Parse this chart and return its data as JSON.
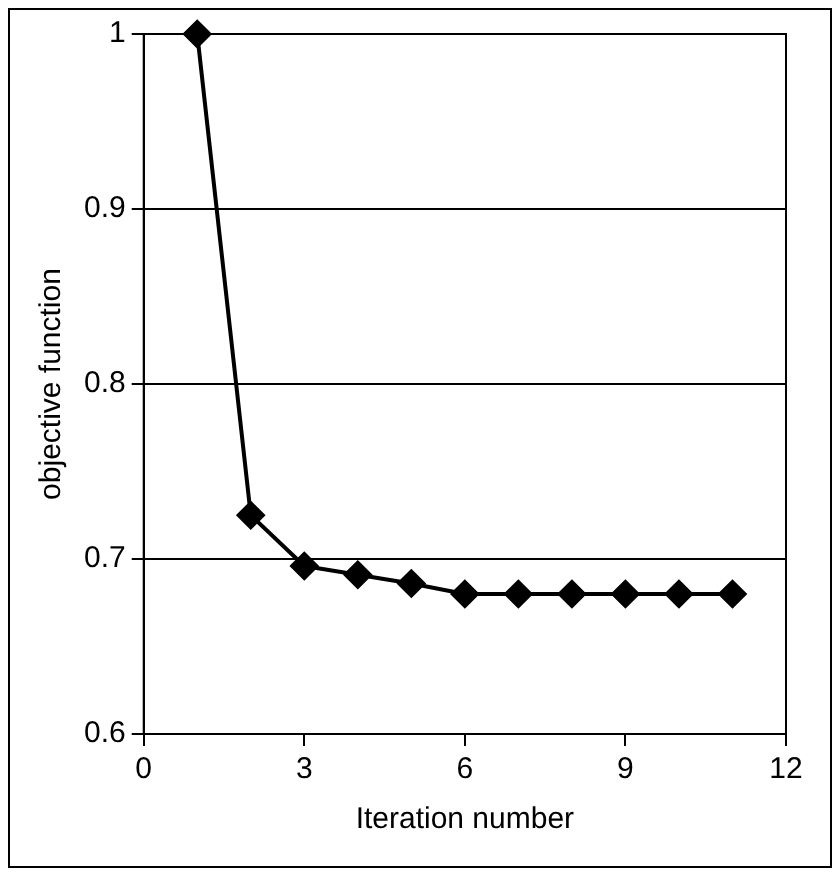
{
  "chart_data": {
    "type": "line",
    "xlabel": "Iteration number",
    "ylabel": "objective function",
    "x": [
      1,
      2,
      3,
      4,
      5,
      6,
      7,
      8,
      9,
      10,
      11
    ],
    "series": [
      {
        "color": "#000000",
        "values": [
          1,
          0.725,
          0.696,
          0.691,
          0.686,
          0.68,
          0.68,
          0.68,
          0.68,
          0.68,
          0.68
        ]
      }
    ],
    "xlim": [
      0,
      12
    ],
    "xticks": [
      0,
      3,
      6,
      9,
      12
    ],
    "ylim": [
      0.6,
      1
    ],
    "yticks": [
      0.6,
      0.7,
      0.8,
      0.9,
      1
    ],
    "grid": "y",
    "legend": false,
    "marker": "diamond",
    "line_style": "solid"
  }
}
